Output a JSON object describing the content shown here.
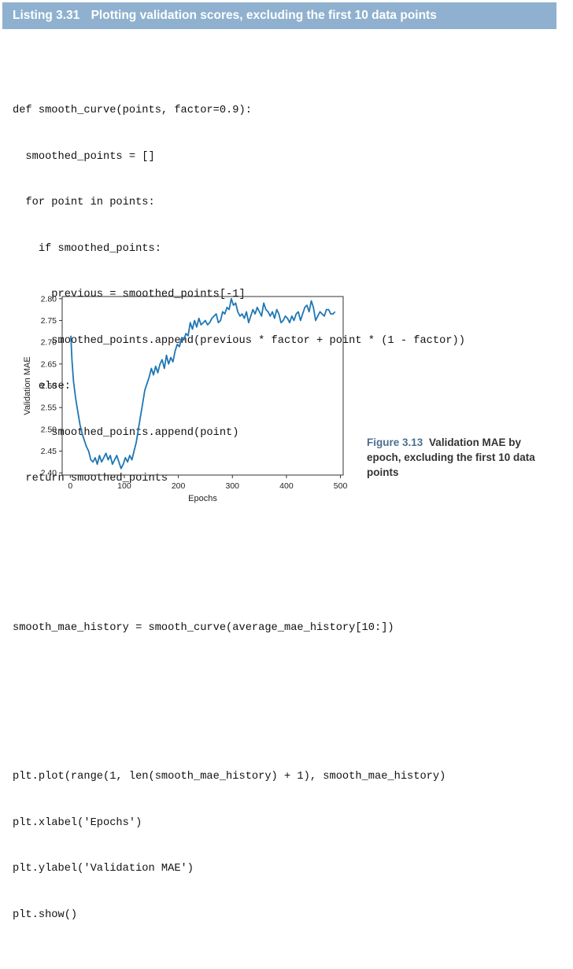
{
  "listing": {
    "number": "Listing 3.31",
    "title": "Plotting validation scores, excluding the first 10 data points"
  },
  "code": {
    "block1": [
      "def smooth_curve(points, factor=0.9):",
      "  smoothed_points = []",
      "  for point in points:",
      "    if smoothed_points:",
      "      previous = smoothed_points[-1]",
      "      smoothed_points.append(previous * factor + point * (1 - factor))",
      "    else:",
      "      smoothed_points.append(point)",
      "  return smoothed_points"
    ],
    "block2": [
      "smooth_mae_history = smooth_curve(average_mae_history[10:])"
    ],
    "block3": [
      "plt.plot(range(1, len(smooth_mae_history) + 1), smooth_mae_history)",
      "plt.xlabel('Epochs')",
      "plt.ylabel('Validation MAE')",
      "plt.show()"
    ]
  },
  "caption": {
    "number": "Figure 3.13",
    "text": "Validation MAE by epoch, excluding the first 10 data points"
  },
  "chart_data": {
    "type": "line",
    "xlabel": "Epochs",
    "ylabel": "Validation MAE",
    "xlim": [
      -15,
      505
    ],
    "ylim": [
      2.395,
      2.805
    ],
    "xticks": [
      0,
      100,
      200,
      300,
      400,
      500
    ],
    "yticks": [
      2.4,
      2.45,
      2.5,
      2.55,
      2.6,
      2.65,
      2.7,
      2.75,
      2.8
    ],
    "line_color": "#1f77b4",
    "grid": false,
    "series": [
      {
        "x": [
          1,
          3,
          6,
          10,
          14,
          18,
          22,
          26,
          30,
          34,
          38,
          42,
          46,
          50,
          54,
          58,
          62,
          66,
          70,
          74,
          78,
          82,
          86,
          90,
          94,
          98,
          102,
          106,
          110,
          114,
          118,
          122,
          126,
          130,
          134,
          138,
          142,
          146,
          150,
          154,
          158,
          162,
          166,
          170,
          174,
          178,
          182,
          186,
          190,
          194,
          198,
          202,
          206,
          210,
          214,
          218,
          222,
          226,
          230,
          234,
          238,
          242,
          246,
          250,
          254,
          258,
          262,
          266,
          270,
          274,
          278,
          282,
          286,
          290,
          294,
          298,
          302,
          306,
          310,
          314,
          318,
          322,
          326,
          330,
          334,
          338,
          342,
          346,
          350,
          354,
          358,
          362,
          366,
          370,
          374,
          378,
          382,
          386,
          390,
          394,
          398,
          402,
          406,
          410,
          414,
          418,
          422,
          426,
          430,
          434,
          438,
          442,
          446,
          450,
          454,
          458,
          462,
          466,
          470,
          474,
          478,
          482,
          486,
          490
        ],
        "y": [
          2.715,
          2.66,
          2.61,
          2.57,
          2.54,
          2.51,
          2.49,
          2.475,
          2.46,
          2.45,
          2.43,
          2.425,
          2.435,
          2.42,
          2.44,
          2.425,
          2.435,
          2.445,
          2.43,
          2.44,
          2.42,
          2.43,
          2.44,
          2.425,
          2.41,
          2.42,
          2.435,
          2.425,
          2.44,
          2.43,
          2.45,
          2.47,
          2.5,
          2.53,
          2.56,
          2.59,
          2.605,
          2.62,
          2.64,
          2.625,
          2.645,
          2.63,
          2.65,
          2.66,
          2.64,
          2.67,
          2.65,
          2.665,
          2.655,
          2.68,
          2.695,
          2.69,
          2.71,
          2.705,
          2.72,
          2.715,
          2.745,
          2.73,
          2.75,
          2.735,
          2.755,
          2.74,
          2.745,
          2.75,
          2.74,
          2.745,
          2.755,
          2.76,
          2.765,
          2.745,
          2.75,
          2.77,
          2.765,
          2.78,
          2.775,
          2.8,
          2.785,
          2.79,
          2.77,
          2.76,
          2.765,
          2.755,
          2.77,
          2.745,
          2.76,
          2.775,
          2.765,
          2.78,
          2.77,
          2.76,
          2.79,
          2.775,
          2.77,
          2.76,
          2.77,
          2.755,
          2.775,
          2.765,
          2.745,
          2.75,
          2.76,
          2.755,
          2.745,
          2.76,
          2.75,
          2.765,
          2.77,
          2.75,
          2.765,
          2.78,
          2.785,
          2.77,
          2.795,
          2.78,
          2.75,
          2.76,
          2.77,
          2.765,
          2.76,
          2.775,
          2.775,
          2.765,
          2.765,
          2.77
        ]
      }
    ]
  }
}
